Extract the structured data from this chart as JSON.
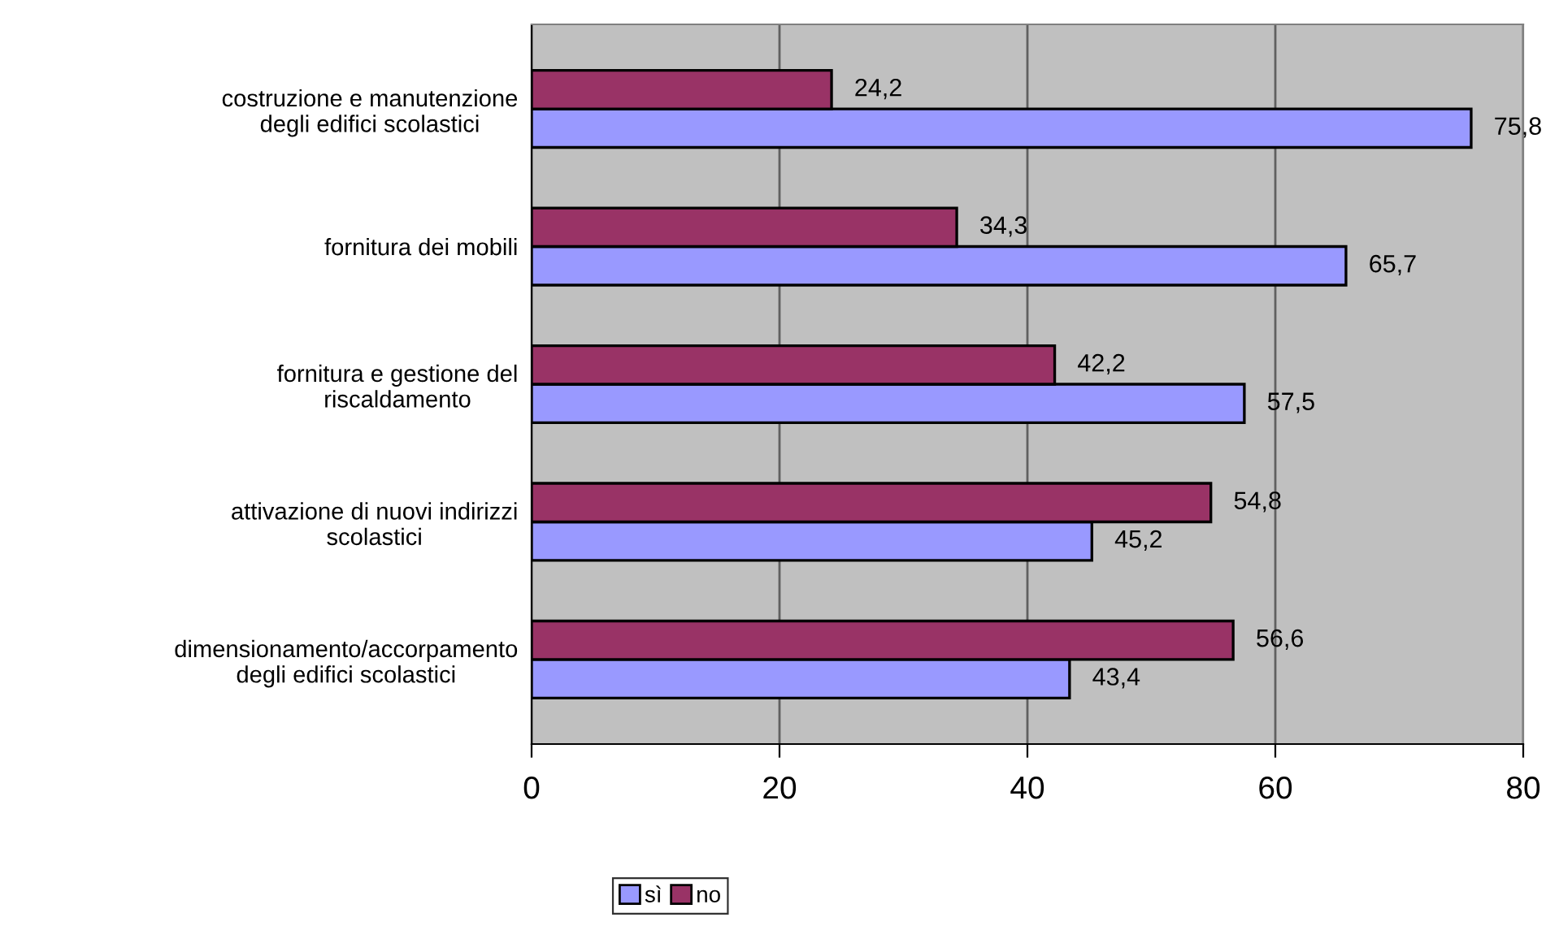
{
  "chart_data": {
    "type": "bar",
    "orientation": "horizontal",
    "categories": [
      "costruzione e manutenzione\ndegli edifici scolastici",
      "fornitura dei mobili",
      "fornitura e gestione del\nriscaldamento",
      "attivazione di nuovi indirizzi\nscolastici",
      "dimensionamento/accorpamento\ndegli edifici scolastici"
    ],
    "series": [
      {
        "name": "sì",
        "color": "#9999ff",
        "values": [
          75.8,
          65.7,
          57.5,
          45.2,
          43.4
        ],
        "value_labels": [
          "75,8",
          "65,7",
          "57,5",
          "45,2",
          "43,4"
        ]
      },
      {
        "name": "no",
        "color": "#993366",
        "values": [
          24.2,
          34.3,
          42.2,
          54.8,
          56.6
        ],
        "value_labels": [
          "24,2",
          "34,3",
          "42,2",
          "54,8",
          "56,6"
        ]
      }
    ],
    "xlim": [
      0,
      80
    ],
    "xticks": [
      0,
      20,
      40,
      60,
      80
    ],
    "grid": "x",
    "legend": "bottom"
  }
}
